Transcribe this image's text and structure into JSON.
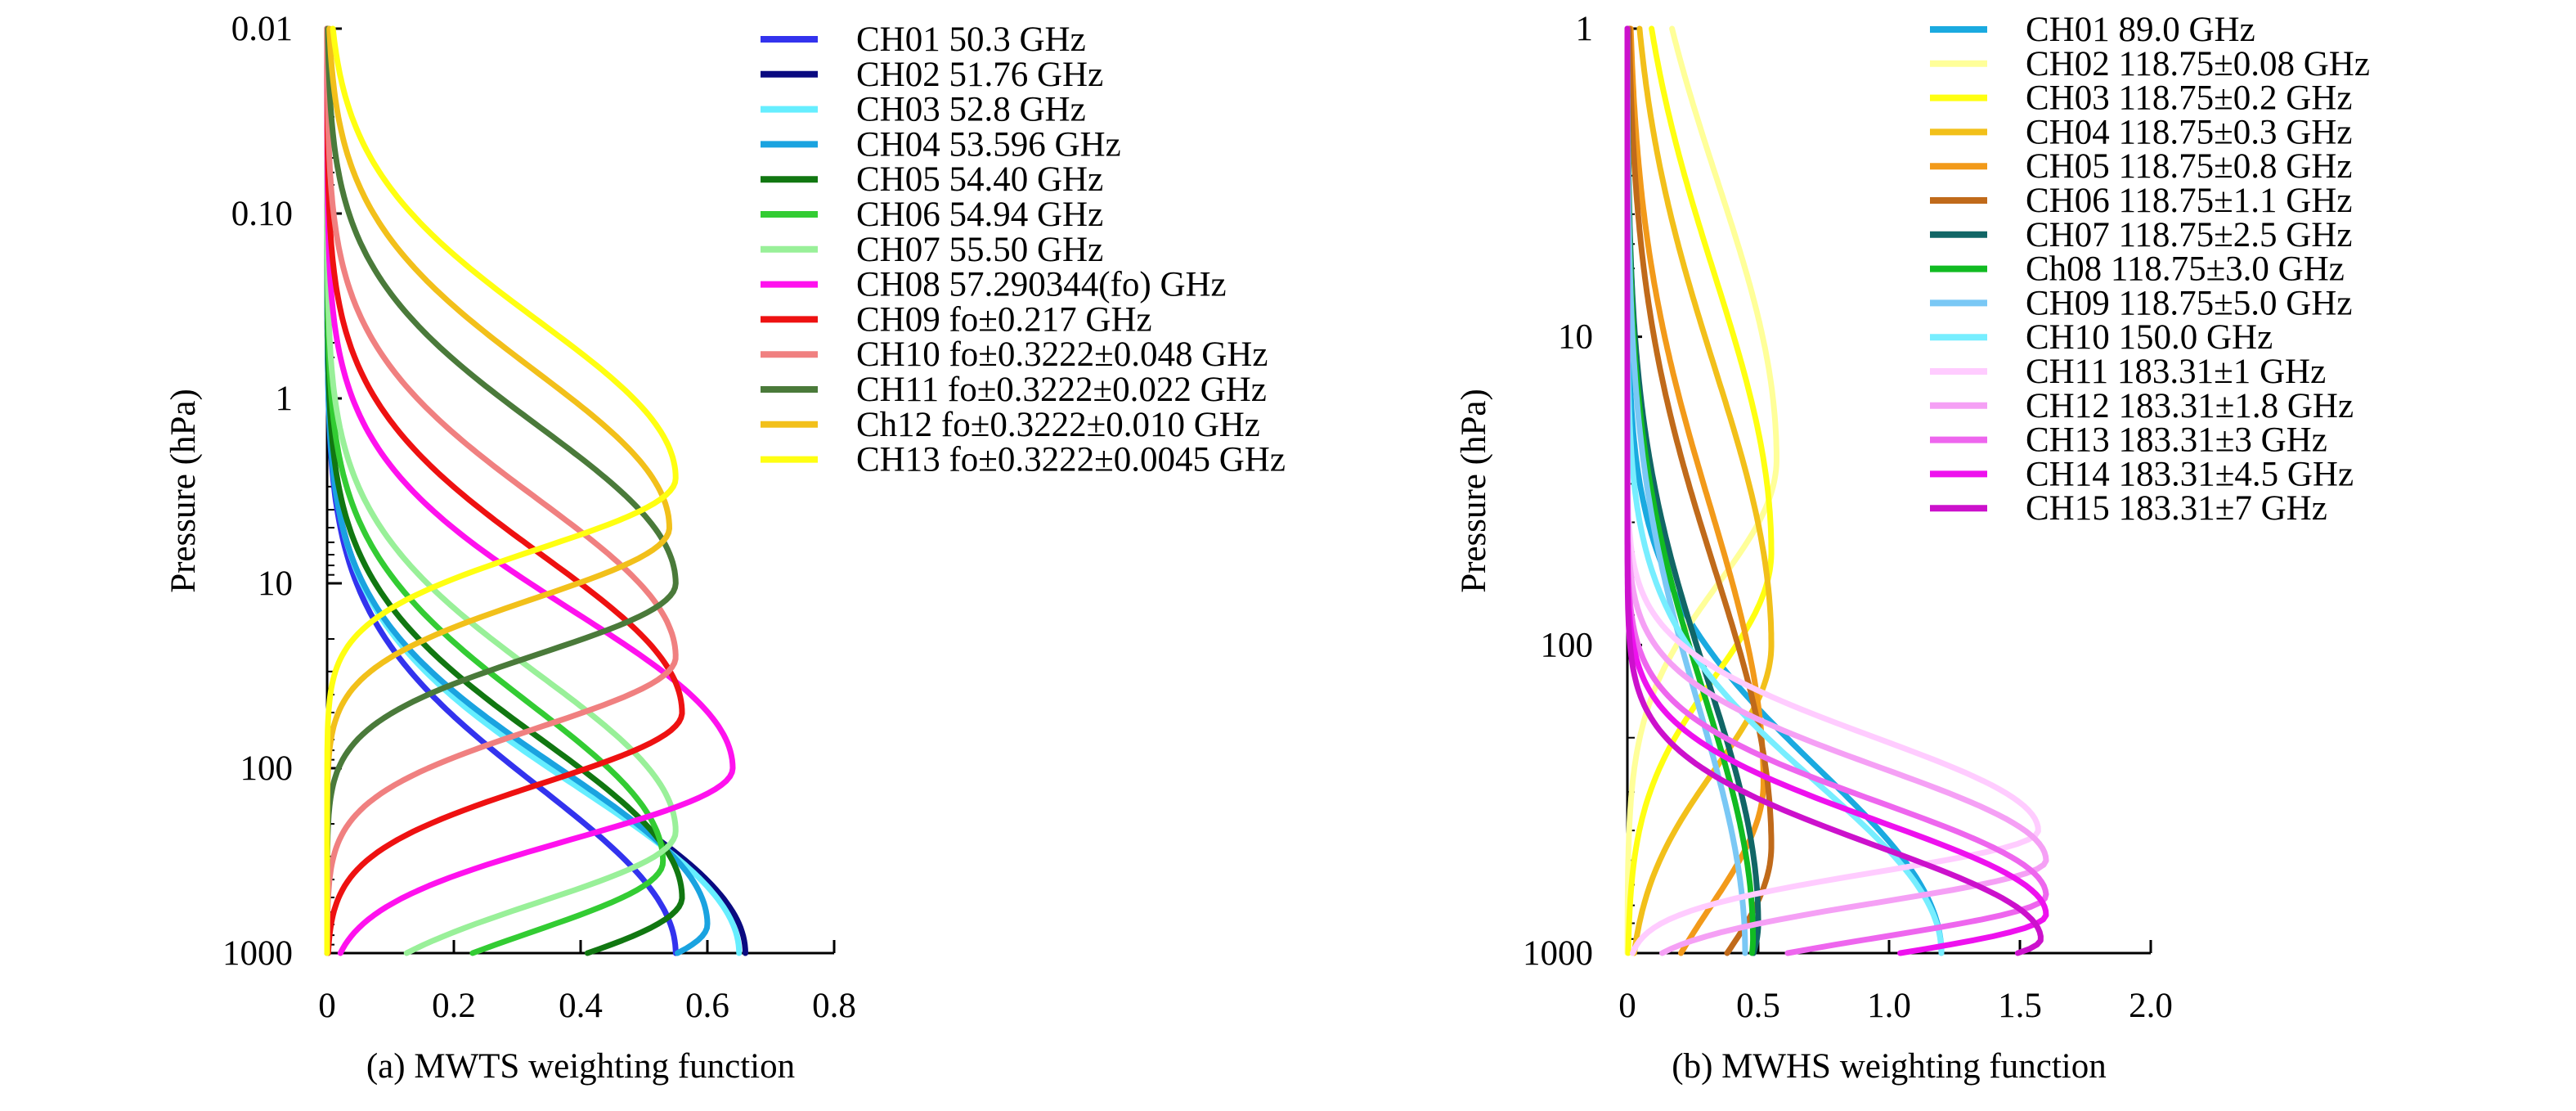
{
  "chart_data": [
    {
      "type": "line",
      "panel": "a",
      "caption": "(a) MWTS weighting function",
      "ylabel": "Pressure (hPa)",
      "xlabel": "",
      "yscale": "log",
      "ylim": [
        1000,
        0.01
      ],
      "xlim": [
        0,
        0.8
      ],
      "xticks": [
        0,
        0.2,
        0.4,
        0.6,
        0.8
      ],
      "xtick_labels": [
        "0",
        "0.2",
        "0.4",
        "0.6",
        "0.8"
      ],
      "yticks": [
        0.01,
        0.1,
        1,
        10,
        100,
        1000
      ],
      "ytick_labels": [
        "0.01",
        "0.10",
        "1",
        "10",
        "100",
        "1000"
      ],
      "legend_position": "top-right",
      "series": [
        {
          "name": "CH01 50.3 GHz",
          "color": "#3333ee",
          "peak_pressure": 1000,
          "peak_value": 0.55,
          "width": 0.9
        },
        {
          "name": "CH02 51.76 GHz",
          "color": "#0a0a80",
          "peak_pressure": 1000,
          "peak_value": 0.66,
          "width": 0.9
        },
        {
          "name": "CH03 52.8 GHz",
          "color": "#66eeff",
          "peak_pressure": 1000,
          "peak_value": 0.65,
          "width": 0.9
        },
        {
          "name": "CH04 53.596 GHz",
          "color": "#1aa3e0",
          "peak_pressure": 700,
          "peak_value": 0.6,
          "width": 0.85
        },
        {
          "name": "CH05 54.40 GHz",
          "color": "#117711",
          "peak_pressure": 500,
          "peak_value": 0.56,
          "width": 0.85
        },
        {
          "name": "CH06 54.94 GHz",
          "color": "#33cc33",
          "peak_pressure": 320,
          "peak_value": 0.53,
          "width": 0.85
        },
        {
          "name": "CH07 55.50 GHz",
          "color": "#99f099",
          "peak_pressure": 220,
          "peak_value": 0.55,
          "width": 0.85
        },
        {
          "name": "CH08 57.290344(fo) GHz",
          "color": "#ff11ee",
          "peak_pressure": 100,
          "peak_value": 0.64,
          "width": 0.85
        },
        {
          "name": "CH09 fo±0.217 GHz",
          "color": "#ee1111",
          "peak_pressure": 50,
          "peak_value": 0.56,
          "width": 0.85
        },
        {
          "name": "CH10 fo±0.3222±0.048 GHz",
          "color": "#f08080",
          "peak_pressure": 25,
          "peak_value": 0.55,
          "width": 0.85
        },
        {
          "name": "CH11 fo±0.3222±0.022 GHz",
          "color": "#4a7a3a",
          "peak_pressure": 10,
          "peak_value": 0.55,
          "width": 0.85
        },
        {
          "name": "Ch12 fo±0.3222±0.010 GHz",
          "color": "#f2c01a",
          "peak_pressure": 5,
          "peak_value": 0.54,
          "width": 0.85
        },
        {
          "name": "CH13 fo±0.3222±0.0045 GHz",
          "color": "#ffff11",
          "peak_pressure": 2.7,
          "peak_value": 0.55,
          "width": 0.85
        }
      ]
    },
    {
      "type": "line",
      "panel": "b",
      "caption": "(b) MWHS weighting function",
      "ylabel": "Pressure (hPa)",
      "xlabel": "",
      "yscale": "log",
      "ylim": [
        1000,
        1
      ],
      "xlim": [
        0,
        2.0
      ],
      "xticks": [
        0,
        0.5,
        1.0,
        1.5,
        2.0
      ],
      "xtick_labels": [
        "0",
        "0.5",
        "1.0",
        "1.5",
        "2.0"
      ],
      "yticks": [
        1,
        10,
        100,
        1000
      ],
      "ytick_labels": [
        "1",
        "10",
        "100",
        "1000"
      ],
      "legend_position": "top-right",
      "series": [
        {
          "name": "CH01 89.0 GHz",
          "color": "#1aaae0",
          "peak_pressure": 1000,
          "peak_value": 1.2,
          "width": 0.6
        },
        {
          "name": "CH02 118.75±0.08 GHz",
          "color": "#ffff99",
          "peak_pressure": 25,
          "peak_value": 0.57,
          "width": 0.9
        },
        {
          "name": "CH03 118.75±0.2 GHz",
          "color": "#ffff11",
          "peak_pressure": 50,
          "peak_value": 0.55,
          "width": 0.9
        },
        {
          "name": "CH04 118.75±0.3 GHz",
          "color": "#f2c01a",
          "peak_pressure": 100,
          "peak_value": 0.55,
          "width": 0.9
        },
        {
          "name": "CH05 118.75±0.8 GHz",
          "color": "#f29a1a",
          "peak_pressure": 280,
          "peak_value": 0.52,
          "width": 0.9
        },
        {
          "name": "CH06 118.75±1.1 GHz",
          "color": "#c06a1a",
          "peak_pressure": 450,
          "peak_value": 0.55,
          "width": 0.9
        },
        {
          "name": "CH07 118.75±2.5 GHz",
          "color": "#116666",
          "peak_pressure": 800,
          "peak_value": 0.5,
          "width": 0.8
        },
        {
          "name": "Ch08 118.75±3.0 GHz",
          "color": "#11bb22",
          "peak_pressure": 900,
          "peak_value": 0.48,
          "width": 0.8
        },
        {
          "name": "CH09 118.75±5.0 GHz",
          "color": "#7ac8f5",
          "peak_pressure": 1000,
          "peak_value": 0.45,
          "width": 0.8
        },
        {
          "name": "CH10 150.0 GHz",
          "color": "#77eeff",
          "peak_pressure": 1000,
          "peak_value": 1.2,
          "width": 0.55
        },
        {
          "name": "CH11 183.31±1 GHz",
          "color": "#ffccff",
          "peak_pressure": 400,
          "peak_value": 1.57,
          "width": 0.3
        },
        {
          "name": "CH12 183.31±1.8 GHz",
          "color": "#f5a0f5",
          "peak_pressure": 500,
          "peak_value": 1.6,
          "width": 0.3
        },
        {
          "name": "CH13 183.31±3 GHz",
          "color": "#ee66ee",
          "peak_pressure": 650,
          "peak_value": 1.6,
          "width": 0.3
        },
        {
          "name": "CH14 183.31±4.5 GHz",
          "color": "#ee11ee",
          "peak_pressure": 750,
          "peak_value": 1.6,
          "width": 0.3
        },
        {
          "name": "CH15 183.31±7 GHz",
          "color": "#cc11cc",
          "peak_pressure": 900,
          "peak_value": 1.58,
          "width": 0.3
        }
      ]
    }
  ]
}
